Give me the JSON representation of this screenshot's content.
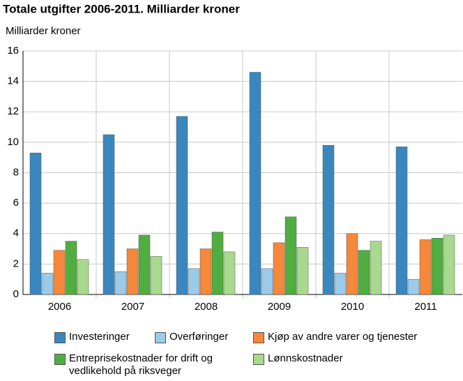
{
  "chart_data": {
    "type": "bar",
    "title": "Totale utgifter 2006-2011. Milliarder kroner",
    "y_label": "Milliarder kroner",
    "categories": [
      "2006",
      "2007",
      "2008",
      "2009",
      "2010",
      "2011"
    ],
    "series": [
      {
        "name": "Investeringer",
        "color": "#3a87c0",
        "values": [
          9.3,
          10.5,
          11.7,
          14.6,
          9.8,
          9.7
        ]
      },
      {
        "name": "Overføringer",
        "color": "#9ccae9",
        "values": [
          1.4,
          1.5,
          1.7,
          1.7,
          1.4,
          1.0
        ]
      },
      {
        "name": "Kjøp av andre varer og tjenester",
        "color": "#f5883a",
        "values": [
          2.9,
          3.0,
          3.0,
          3.4,
          4.0,
          3.6
        ]
      },
      {
        "name": "Entreprisekostnader for drift og vedlikehold på riksveger",
        "color": "#4fae3f",
        "values": [
          3.5,
          3.9,
          4.1,
          5.1,
          2.9,
          3.7
        ]
      },
      {
        "name": "Lønnskostnader",
        "color": "#a8d98e",
        "values": [
          2.3,
          2.5,
          2.8,
          3.1,
          3.5,
          3.9
        ]
      }
    ],
    "ylim": [
      0,
      16
    ],
    "yticks": [
      0,
      2,
      4,
      6,
      8,
      10,
      12,
      14,
      16
    ],
    "grid": true
  }
}
